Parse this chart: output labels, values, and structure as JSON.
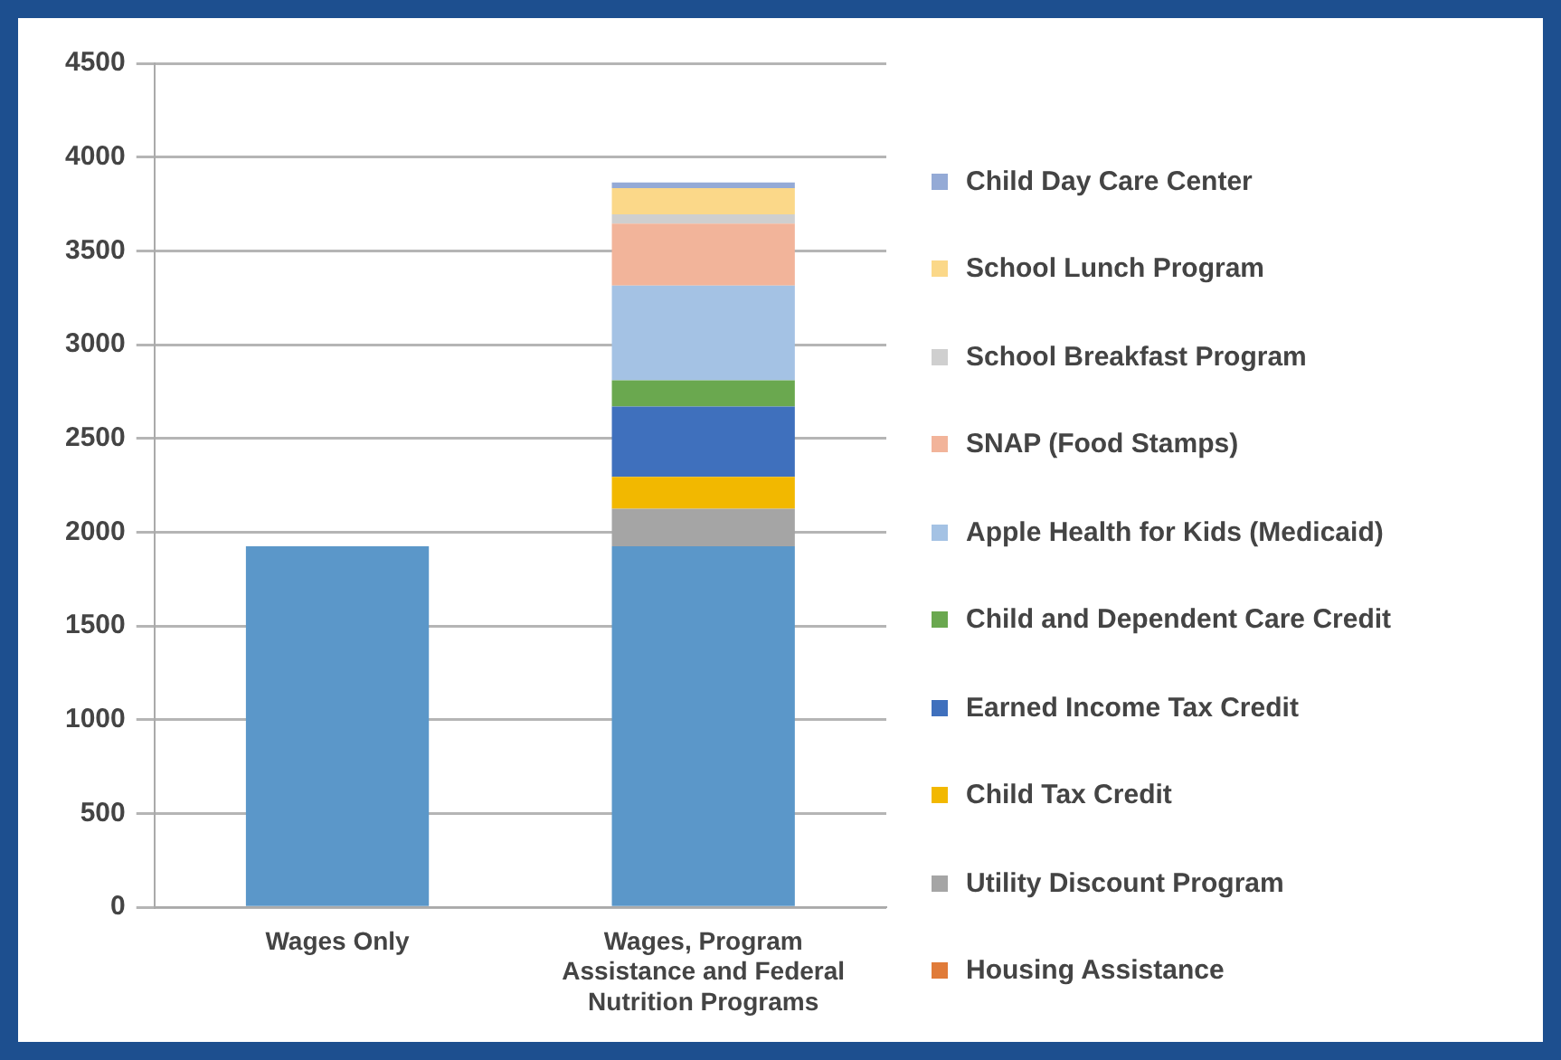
{
  "chart_data": {
    "type": "bar",
    "stacked": true,
    "categories": [
      "Wages Only",
      "Wages, Program Assistance and Federal Nutrition Programs"
    ],
    "series": [
      {
        "color": "#5b97c9",
        "values": [
          1925,
          1925
        ]
      },
      {
        "name": "Housing Assistance",
        "color": "#e07b39",
        "values": [
          0,
          0
        ]
      },
      {
        "name": "Utility Discount Program",
        "color": "#a5a5a5",
        "values": [
          0,
          200
        ]
      },
      {
        "name": "Child Tax Credit",
        "color": "#f2b800",
        "values": [
          0,
          170
        ]
      },
      {
        "name": "Earned Income Tax Credit",
        "color": "#3f70bd",
        "values": [
          0,
          375
        ]
      },
      {
        "name": "Child and Dependent Care Credit",
        "color": "#6aa84f",
        "values": [
          0,
          140
        ]
      },
      {
        "name": "Apple Health for Kids (Medicaid)",
        "color": "#a4c2e4",
        "values": [
          0,
          505
        ]
      },
      {
        "name": "SNAP (Food Stamps)",
        "color": "#f2b49a",
        "values": [
          0,
          330
        ]
      },
      {
        "name": "School Breakfast Program",
        "color": "#cfcfcf",
        "values": [
          0,
          50
        ]
      },
      {
        "name": "School Lunch Program",
        "color": "#fbd889",
        "values": [
          0,
          140
        ]
      },
      {
        "name": "Child Day Care Center",
        "color": "#94aad6",
        "values": [
          0,
          30
        ]
      }
    ],
    "ylim": [
      0,
      4500
    ],
    "yticks": [
      0,
      500,
      1000,
      1500,
      2000,
      2500,
      3000,
      3500,
      4000,
      4500
    ],
    "grid": "y",
    "legend": "right"
  }
}
